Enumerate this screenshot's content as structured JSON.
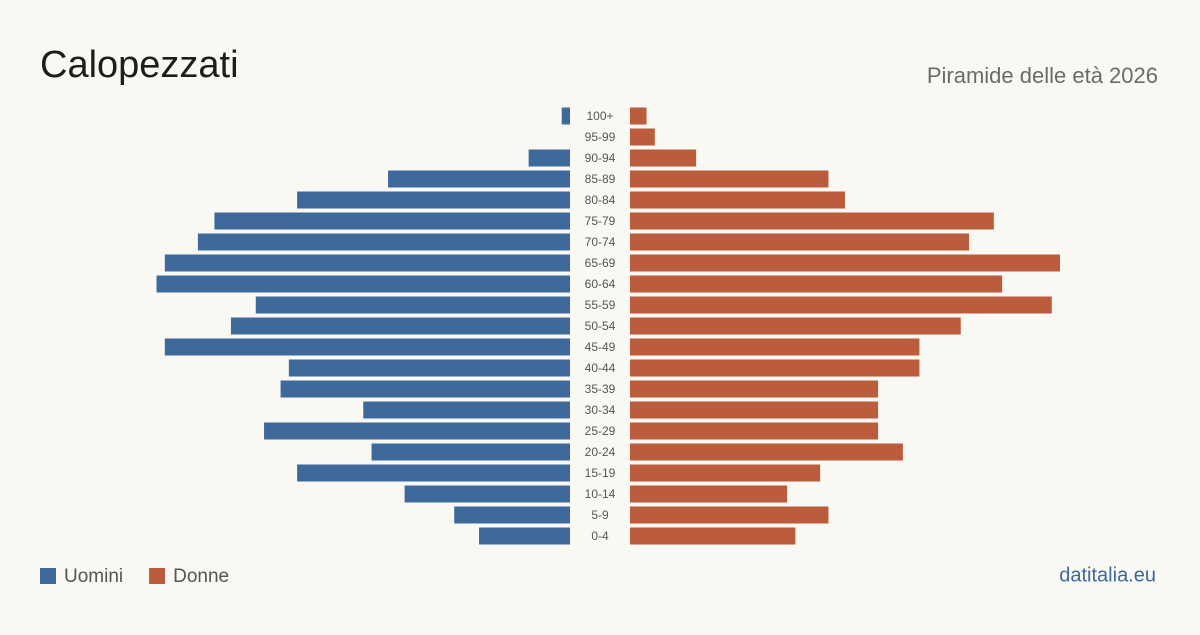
{
  "chart_data": {
    "type": "pyramid",
    "title": "Calopezzati",
    "subtitle": "Piramide delle età 2026",
    "source": "datitalia.eu",
    "categories": [
      "100+",
      "95-99",
      "90-94",
      "85-89",
      "80-84",
      "75-79",
      "70-74",
      "65-69",
      "60-64",
      "55-59",
      "50-54",
      "45-49",
      "40-44",
      "35-39",
      "30-34",
      "25-29",
      "20-24",
      "15-19",
      "10-14",
      "5-9",
      "0-4"
    ],
    "series": [
      {
        "name": "Uomini",
        "color": "#3d6a9b",
        "side": "left",
        "values": [
          1,
          0,
          5,
          22,
          33,
          43,
          45,
          49,
          50,
          38,
          41,
          49,
          34,
          35,
          25,
          37,
          24,
          33,
          20,
          14,
          11
        ]
      },
      {
        "name": "Donne",
        "color": "#bb5c3c",
        "side": "right",
        "values": [
          2,
          3,
          8,
          24,
          26,
          44,
          41,
          52,
          45,
          51,
          40,
          35,
          35,
          30,
          30,
          30,
          33,
          23,
          19,
          24,
          20
        ]
      }
    ]
  }
}
